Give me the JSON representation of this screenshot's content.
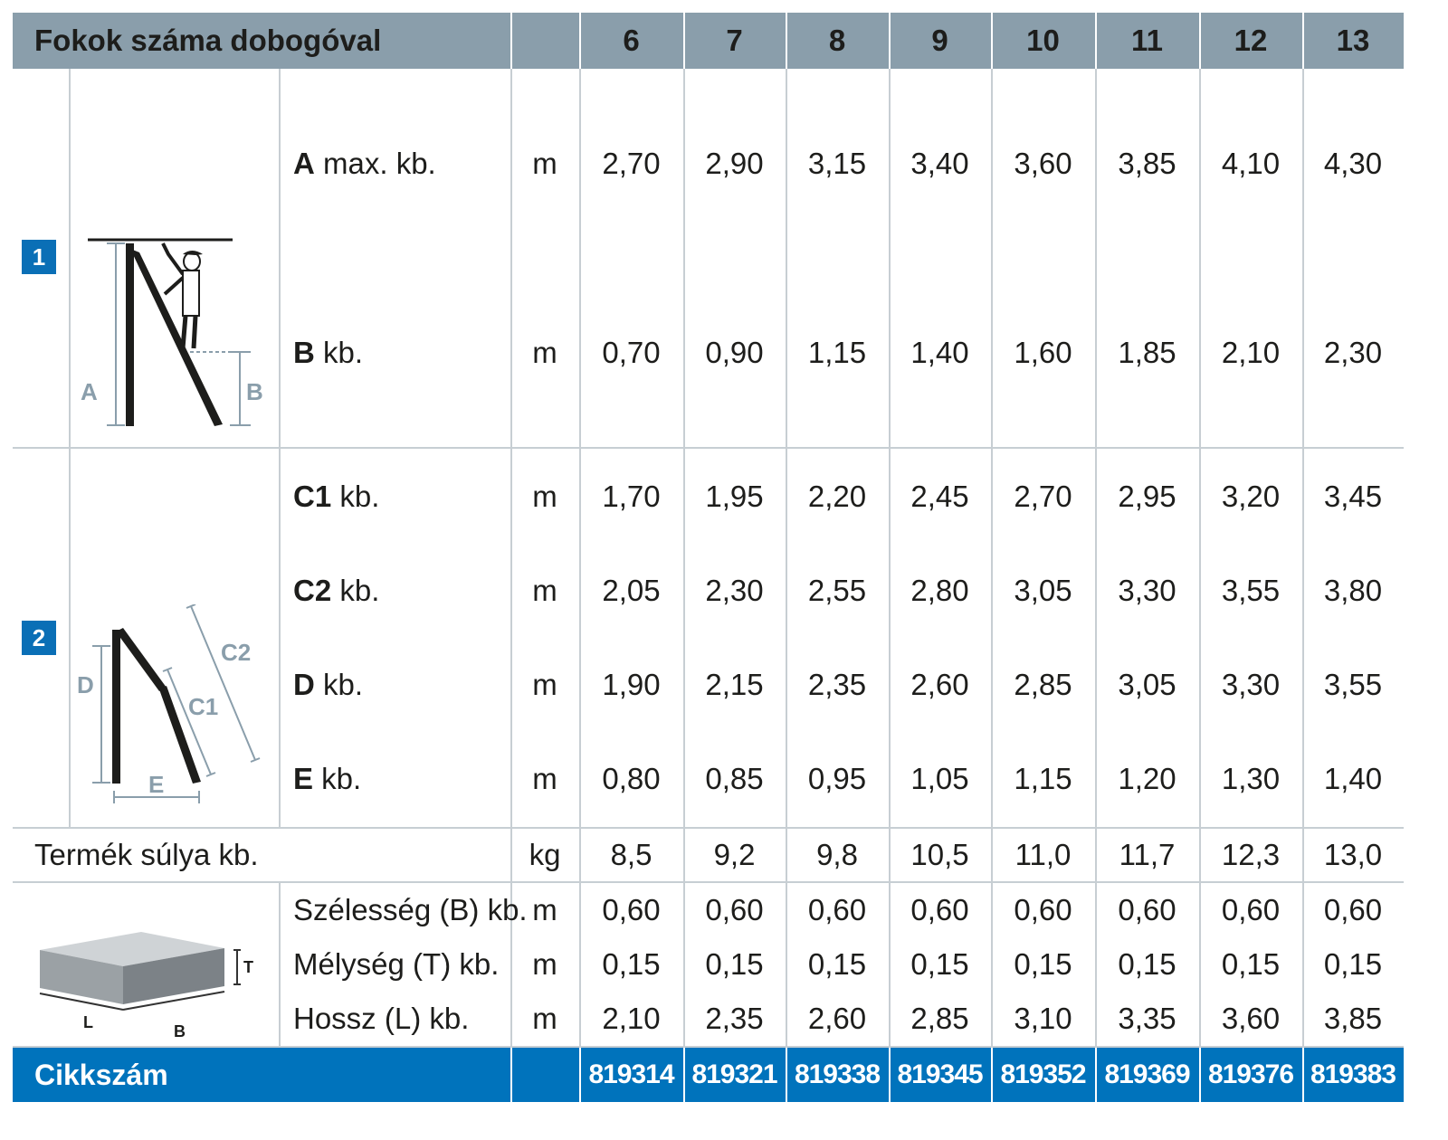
{
  "header": {
    "label": "Fokok száma dobogóval",
    "columns": [
      "6",
      "7",
      "8",
      "9",
      "10",
      "11",
      "12",
      "13"
    ]
  },
  "section1": {
    "badge": "1",
    "figure_labels": {
      "a": "A",
      "b": "B"
    },
    "rows": [
      {
        "key": "A",
        "rest": " max. kb.",
        "unit": "m",
        "values": [
          "2,70",
          "2,90",
          "3,15",
          "3,40",
          "3,60",
          "3,85",
          "4,10",
          "4,30"
        ]
      },
      {
        "key": "B",
        "rest": " kb.",
        "unit": "m",
        "values": [
          "0,70",
          "0,90",
          "1,15",
          "1,40",
          "1,60",
          "1,85",
          "2,10",
          "2,30"
        ]
      }
    ]
  },
  "section2": {
    "badge": "2",
    "figure_labels": {
      "c1": "C1",
      "c2": "C2",
      "d": "D",
      "e": "E"
    },
    "rows": [
      {
        "key": "C1",
        "rest": " kb.",
        "unit": "m",
        "values": [
          "1,70",
          "1,95",
          "2,20",
          "2,45",
          "2,70",
          "2,95",
          "3,20",
          "3,45"
        ]
      },
      {
        "key": "C2",
        "rest": " kb.",
        "unit": "m",
        "values": [
          "2,05",
          "2,30",
          "2,55",
          "2,80",
          "3,05",
          "3,30",
          "3,55",
          "3,80"
        ]
      },
      {
        "key": "D",
        "rest": " kb.",
        "unit": "m",
        "values": [
          "1,90",
          "2,15",
          "2,35",
          "2,60",
          "2,85",
          "3,05",
          "3,30",
          "3,55"
        ]
      },
      {
        "key": "E",
        "rest": " kb.",
        "unit": "m",
        "values": [
          "0,80",
          "0,85",
          "0,95",
          "1,05",
          "1,15",
          "1,20",
          "1,30",
          "1,40"
        ]
      }
    ]
  },
  "weight": {
    "label": "Termék súlya kb.",
    "unit": "kg",
    "values": [
      "8,5",
      "9,2",
      "9,8",
      "10,5",
      "11,0",
      "11,7",
      "12,3",
      "13,0"
    ]
  },
  "package": {
    "figure_labels": {
      "t": "T",
      "l": "L",
      "b": "B"
    },
    "rows": [
      {
        "label": "Szélesség (B) kb.",
        "unit": "m",
        "values": [
          "0,60",
          "0,60",
          "0,60",
          "0,60",
          "0,60",
          "0,60",
          "0,60",
          "0,60"
        ]
      },
      {
        "label": "Mélység (T) kb.",
        "unit": "m",
        "values": [
          "0,15",
          "0,15",
          "0,15",
          "0,15",
          "0,15",
          "0,15",
          "0,15",
          "0,15"
        ]
      },
      {
        "label": "Hossz (L) kb.",
        "unit": "m",
        "values": [
          "2,10",
          "2,35",
          "2,60",
          "2,85",
          "3,10",
          "3,35",
          "3,60",
          "3,85"
        ]
      }
    ]
  },
  "footer": {
    "label": "Cikkszám",
    "values": [
      "819314",
      "819321",
      "819338",
      "819345",
      "819352",
      "819369",
      "819376",
      "819383"
    ]
  },
  "colors": {
    "header_bg": "#8a9eab",
    "footer_bg": "#0073bc",
    "badge_bg": "#0a6fb6",
    "grid": "#c7ced3"
  }
}
